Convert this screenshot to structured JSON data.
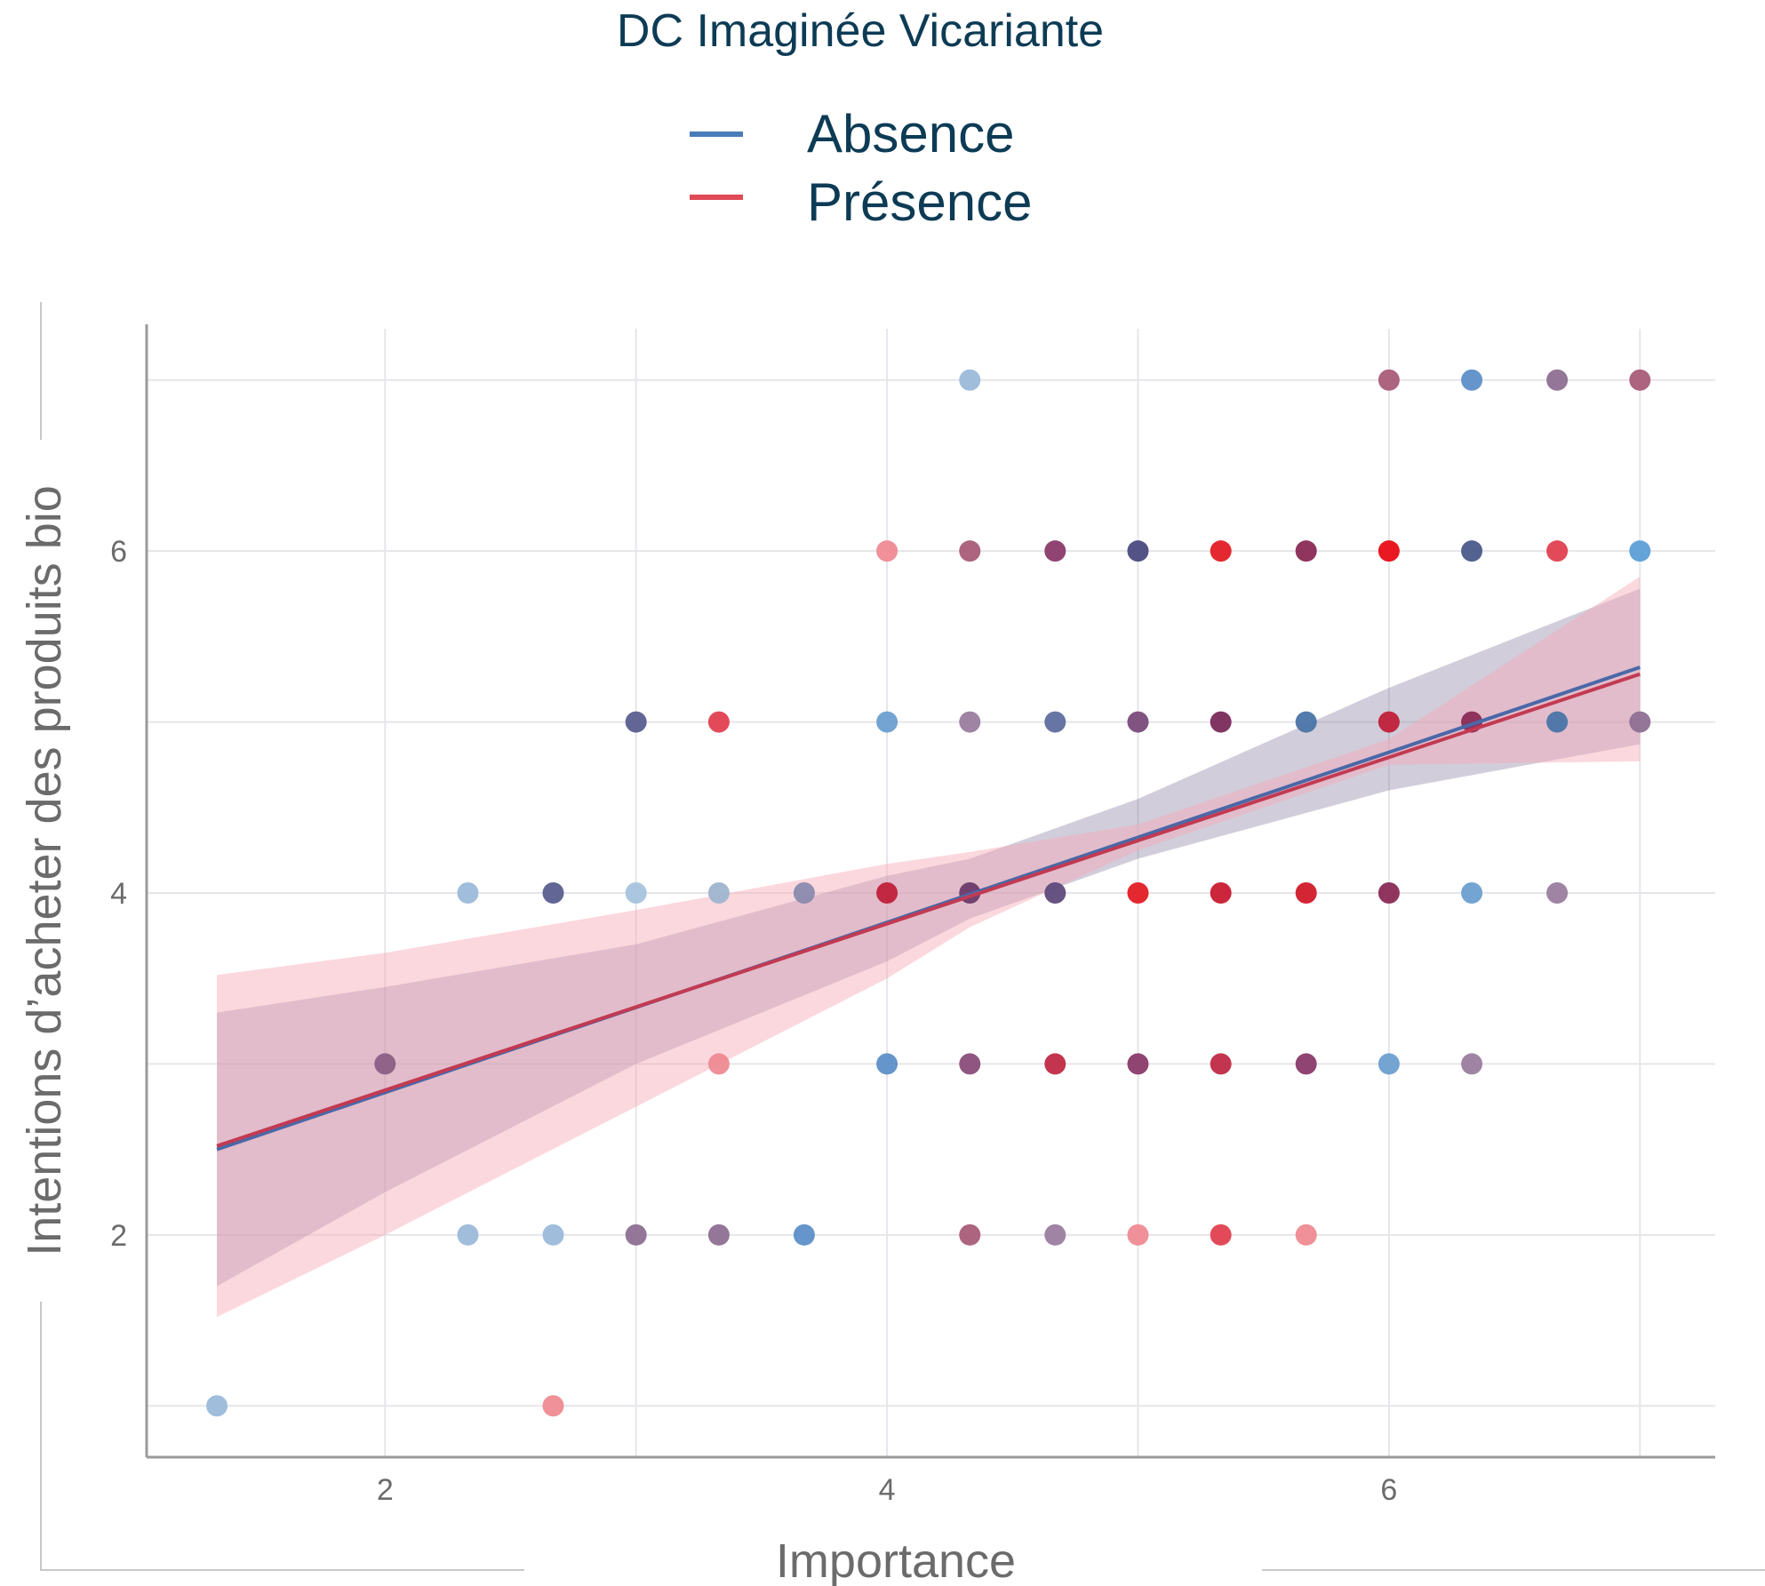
{
  "chart_data": {
    "type": "scatter",
    "title": "DC Imaginée Vicariante",
    "xlabel": "Importance",
    "ylabel": "Intentions d’acheter des produits bio",
    "xlim": [
      1.05,
      7.3
    ],
    "ylim": [
      0.7,
      7.3
    ],
    "xticks": [
      "2",
      "4",
      "6"
    ],
    "yticks": [
      "2",
      "4",
      "6"
    ],
    "grid": true,
    "legend_position": "top",
    "legend": [
      {
        "label": "Absence",
        "color": "#4a7cb8"
      },
      {
        "label": "Présence",
        "color": "#e04a55"
      }
    ],
    "points": [
      {
        "x": 1.33,
        "y": 1,
        "color": "#9bbbd9"
      },
      {
        "x": 2.67,
        "y": 1,
        "color": "#ef8a92"
      },
      {
        "x": 2.0,
        "y": 3,
        "color": "#8b5f85"
      },
      {
        "x": 2.33,
        "y": 2,
        "color": "#9bbbd9"
      },
      {
        "x": 2.67,
        "y": 2,
        "color": "#9bbbd9"
      },
      {
        "x": 3.0,
        "y": 2,
        "color": "#8e6f92"
      },
      {
        "x": 3.33,
        "y": 2,
        "color": "#8e6f92"
      },
      {
        "x": 3.67,
        "y": 2,
        "color": "#5d8fc7"
      },
      {
        "x": 4.33,
        "y": 2,
        "color": "#a85c78"
      },
      {
        "x": 4.67,
        "y": 2,
        "color": "#9a7d9f"
      },
      {
        "x": 5.0,
        "y": 2,
        "color": "#ef8a92"
      },
      {
        "x": 5.33,
        "y": 2,
        "color": "#e04050"
      },
      {
        "x": 5.67,
        "y": 2,
        "color": "#ef8a92"
      },
      {
        "x": 3.33,
        "y": 3,
        "color": "#ef8a92"
      },
      {
        "x": 4.0,
        "y": 3,
        "color": "#5d8fc7"
      },
      {
        "x": 4.33,
        "y": 3,
        "color": "#8a4d7a"
      },
      {
        "x": 4.67,
        "y": 3,
        "color": "#c02a45"
      },
      {
        "x": 5.0,
        "y": 3,
        "color": "#8a3a6a"
      },
      {
        "x": 5.33,
        "y": 3,
        "color": "#c02a45"
      },
      {
        "x": 5.67,
        "y": 3,
        "color": "#8a3a6a"
      },
      {
        "x": 6.0,
        "y": 3,
        "color": "#6c9fd0"
      },
      {
        "x": 6.33,
        "y": 3,
        "color": "#9a7d9f"
      },
      {
        "x": 2.33,
        "y": 4,
        "color": "#9bbbd9"
      },
      {
        "x": 2.67,
        "y": 4,
        "color": "#5a5e8f"
      },
      {
        "x": 3.0,
        "y": 4,
        "color": "#a7c3dd"
      },
      {
        "x": 3.33,
        "y": 4,
        "color": "#9fb5cf"
      },
      {
        "x": 3.67,
        "y": 4,
        "color": "#8a8aae"
      },
      {
        "x": 4.0,
        "y": 4,
        "color": "#c0203a"
      },
      {
        "x": 4.33,
        "y": 4,
        "color": "#6a3a6a"
      },
      {
        "x": 4.67,
        "y": 4,
        "color": "#5e4a7a"
      },
      {
        "x": 5.0,
        "y": 4,
        "color": "#e31c25"
      },
      {
        "x": 5.33,
        "y": 4,
        "color": "#c81a30"
      },
      {
        "x": 5.67,
        "y": 4,
        "color": "#d01a2a"
      },
      {
        "x": 6.0,
        "y": 4,
        "color": "#8a2a55"
      },
      {
        "x": 6.33,
        "y": 4,
        "color": "#6c9fd0"
      },
      {
        "x": 6.67,
        "y": 4,
        "color": "#9a7d9f"
      },
      {
        "x": 3.0,
        "y": 5,
        "color": "#5a5e8f"
      },
      {
        "x": 3.33,
        "y": 5,
        "color": "#e04050"
      },
      {
        "x": 4.0,
        "y": 5,
        "color": "#6c9fd0"
      },
      {
        "x": 4.33,
        "y": 5,
        "color": "#9a7d9f"
      },
      {
        "x": 4.67,
        "y": 5,
        "color": "#5e6e9f"
      },
      {
        "x": 5.0,
        "y": 5,
        "color": "#7a4a7a"
      },
      {
        "x": 5.33,
        "y": 5,
        "color": "#7a2a5a"
      },
      {
        "x": 5.67,
        "y": 5,
        "color": "#4a74a8"
      },
      {
        "x": 6.0,
        "y": 5,
        "color": "#c0203a"
      },
      {
        "x": 6.33,
        "y": 5,
        "color": "#8a2a55"
      },
      {
        "x": 6.67,
        "y": 5,
        "color": "#4a74a8"
      },
      {
        "x": 7.0,
        "y": 5,
        "color": "#8e6f92"
      },
      {
        "x": 4.0,
        "y": 6,
        "color": "#ef8a92"
      },
      {
        "x": 4.33,
        "y": 6,
        "color": "#a85c78"
      },
      {
        "x": 4.67,
        "y": 6,
        "color": "#8a3a6a"
      },
      {
        "x": 5.0,
        "y": 6,
        "color": "#4a4a80"
      },
      {
        "x": 5.33,
        "y": 6,
        "color": "#e31c25"
      },
      {
        "x": 5.67,
        "y": 6,
        "color": "#8a2a55"
      },
      {
        "x": 6.0,
        "y": 6,
        "color": "#e80c15"
      },
      {
        "x": 6.33,
        "y": 6,
        "color": "#4a5a8a"
      },
      {
        "x": 6.67,
        "y": 6,
        "color": "#e04050"
      },
      {
        "x": 7.0,
        "y": 6,
        "color": "#5d9fd7"
      },
      {
        "x": 4.33,
        "y": 7,
        "color": "#9bbbd9"
      },
      {
        "x": 6.0,
        "y": 7,
        "color": "#a85c78"
      },
      {
        "x": 6.33,
        "y": 7,
        "color": "#5d8fc7"
      },
      {
        "x": 6.67,
        "y": 7,
        "color": "#8e6f92"
      },
      {
        "x": 7.0,
        "y": 7,
        "color": "#a85c78"
      }
    ],
    "fits": [
      {
        "label": "Absence",
        "color": "#4a68a8",
        "band_color": "#7a6f95",
        "x": [
          1.33,
          7.0
        ],
        "y": [
          2.5,
          5.32
        ],
        "band_x": [
          1.33,
          2.0,
          3.0,
          4.0,
          4.33,
          5.0,
          6.0,
          7.0
        ],
        "band_upper": [
          3.3,
          3.45,
          3.7,
          4.1,
          4.2,
          4.55,
          5.2,
          5.78
        ],
        "band_lower": [
          1.7,
          2.25,
          3.0,
          3.6,
          3.85,
          4.2,
          4.6,
          4.87
        ]
      },
      {
        "label": "Présence",
        "color": "#c23a52",
        "band_color": "#f7a9b6",
        "x": [
          1.33,
          7.0
        ],
        "y": [
          2.52,
          5.28
        ],
        "band_x": [
          1.33,
          2.0,
          3.0,
          4.0,
          4.33,
          5.0,
          6.0,
          7.0
        ],
        "band_upper": [
          3.52,
          3.65,
          3.9,
          4.17,
          4.24,
          4.4,
          4.9,
          5.85
        ],
        "band_lower": [
          1.52,
          2.0,
          2.75,
          3.5,
          3.8,
          4.25,
          4.75,
          4.77
        ]
      }
    ]
  }
}
